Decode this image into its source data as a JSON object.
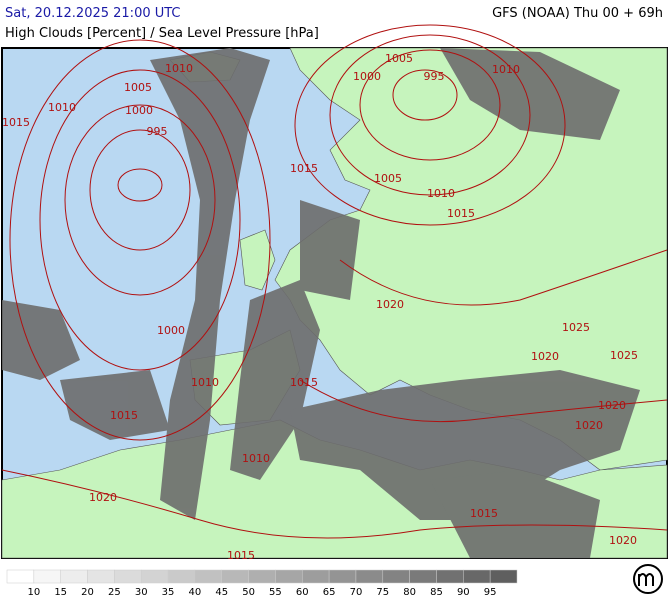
{
  "header": {
    "time": "Sat, 20.12.2025 21:00 UTC",
    "model": "GFS (NOAA) Thu 00 + 69h",
    "title": "High Clouds [Percent] / Sea Level Pressure [hPa]"
  },
  "isobar_labels": [
    1010,
    1005,
    1010,
    1015,
    1000,
    995,
    1005,
    995,
    1000,
    1010,
    1015,
    1005,
    1010,
    1015,
    1020,
    1000,
    1025,
    1020,
    1025,
    1010,
    1015,
    1015,
    1020,
    1020,
    1010,
    1020,
    1015,
    1020,
    1015
  ],
  "legend": {
    "labels": [
      10,
      15,
      20,
      25,
      30,
      35,
      40,
      45,
      50,
      55,
      60,
      65,
      70,
      75,
      80,
      85,
      90,
      95
    ]
  }
}
